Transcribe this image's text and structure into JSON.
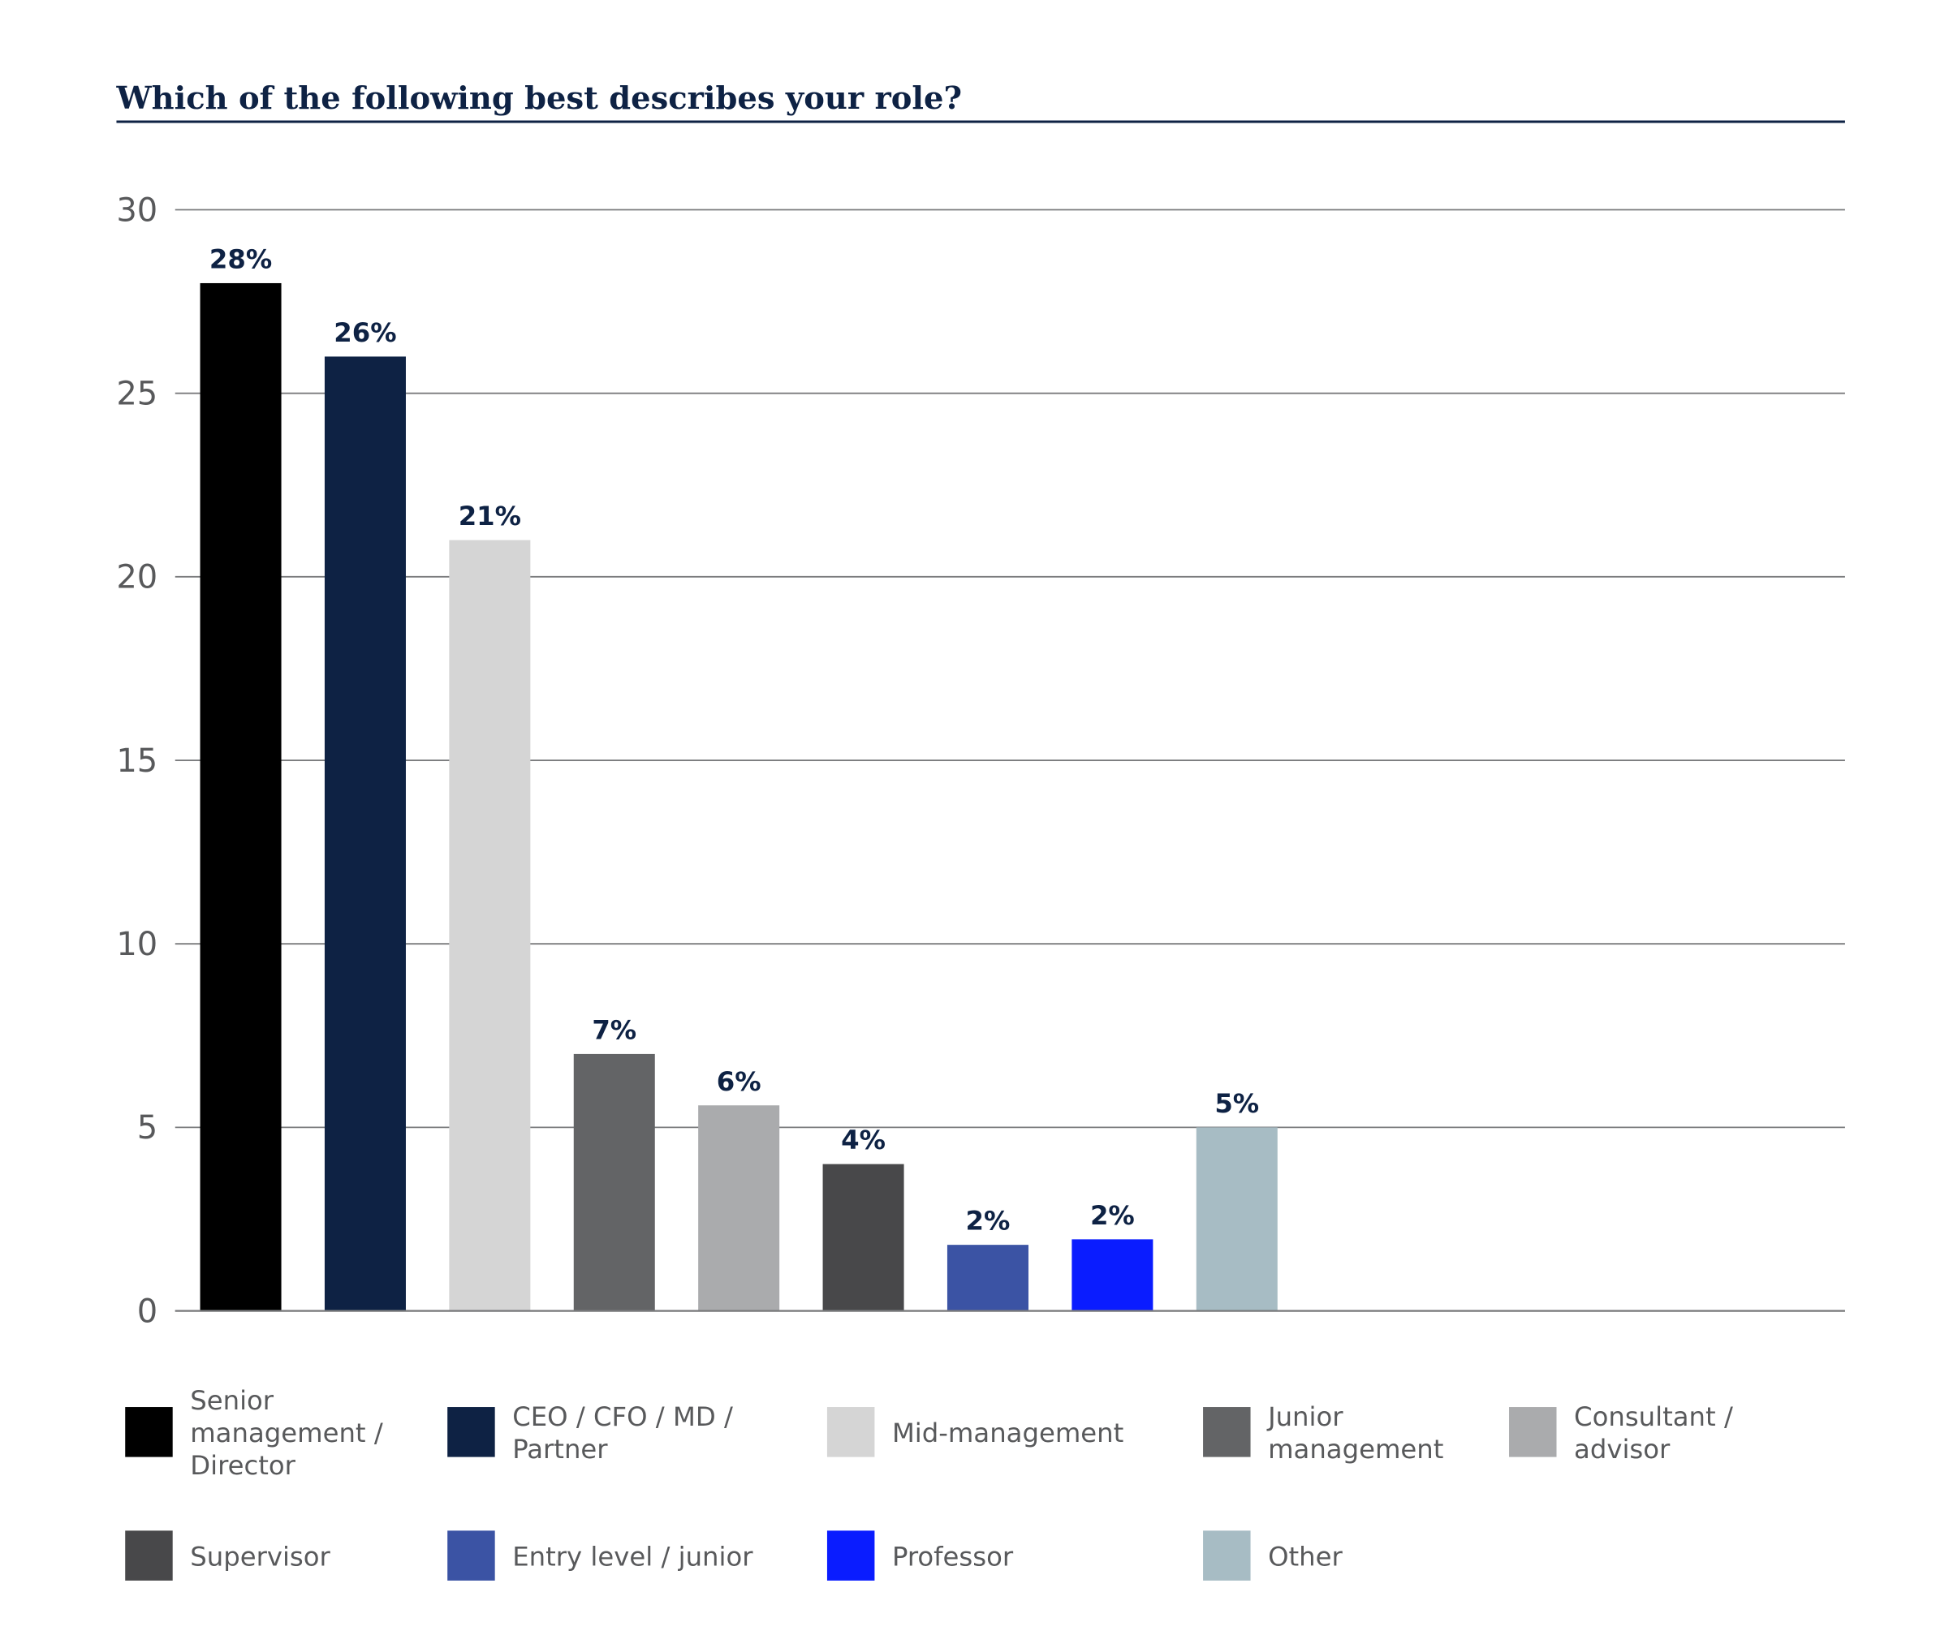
{
  "chart_data": {
    "type": "bar",
    "title": "Which of the following best describes your role?",
    "xlabel": "",
    "ylabel": "",
    "ylim": [
      0,
      30
    ],
    "yticks": [
      0,
      5,
      10,
      15,
      20,
      25,
      30
    ],
    "grid": true,
    "legend_placement": "bottom",
    "categories": [
      "Senior management / Director",
      "CEO / CFO / MD / Partner",
      "Mid-management",
      "Junior management",
      "Consultant / advisor",
      "Supervisor",
      "Entry level / junior",
      "Professor",
      "Other"
    ],
    "values": [
      28,
      26,
      21,
      7,
      5.6,
      4,
      1.8,
      1.95,
      5
    ],
    "data_labels": [
      "28%",
      "26%",
      "21%",
      "7%",
      "6%",
      "4%",
      "2%",
      "2%",
      "5%"
    ],
    "colors": [
      "#000000",
      "#0e2244",
      "#d5d5d5",
      "#636466",
      "#aaabad",
      "#48484a",
      "#3b53a4",
      "#0a1cff",
      "#a7bcc4"
    ],
    "legend": [
      {
        "lines": [
          "Senior",
          "management /",
          "Director"
        ]
      },
      {
        "lines": [
          "CEO / CFO / MD /",
          "Partner"
        ]
      },
      {
        "lines": [
          "Mid-management"
        ]
      },
      {
        "lines": [
          "Junior",
          "management"
        ]
      },
      {
        "lines": [
          "Consultant /",
          "advisor"
        ]
      },
      {
        "lines": [
          "Supervisor"
        ]
      },
      {
        "lines": [
          "Entry level / junior"
        ]
      },
      {
        "lines": [
          "Professor"
        ]
      },
      {
        "lines": [
          "Other"
        ]
      }
    ]
  }
}
